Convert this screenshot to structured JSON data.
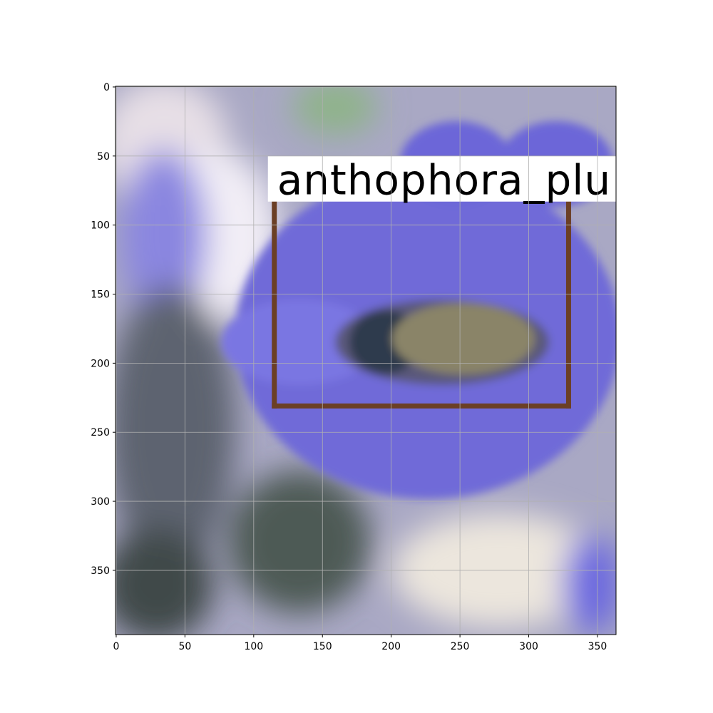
{
  "chart_data": {
    "type": "image",
    "xlim": [
      -0.5,
      363.5
    ],
    "ylim": [
      396.5,
      -0.5
    ],
    "xticks": [
      0,
      50,
      100,
      150,
      200,
      250,
      300,
      350
    ],
    "yticks": [
      0,
      50,
      100,
      150,
      200,
      250,
      300,
      350
    ],
    "grid": true,
    "box": {
      "label": "anthophora_plu",
      "x": [
        115,
        329
      ],
      "y": [
        83,
        231
      ],
      "color": "#6b3f25"
    }
  }
}
